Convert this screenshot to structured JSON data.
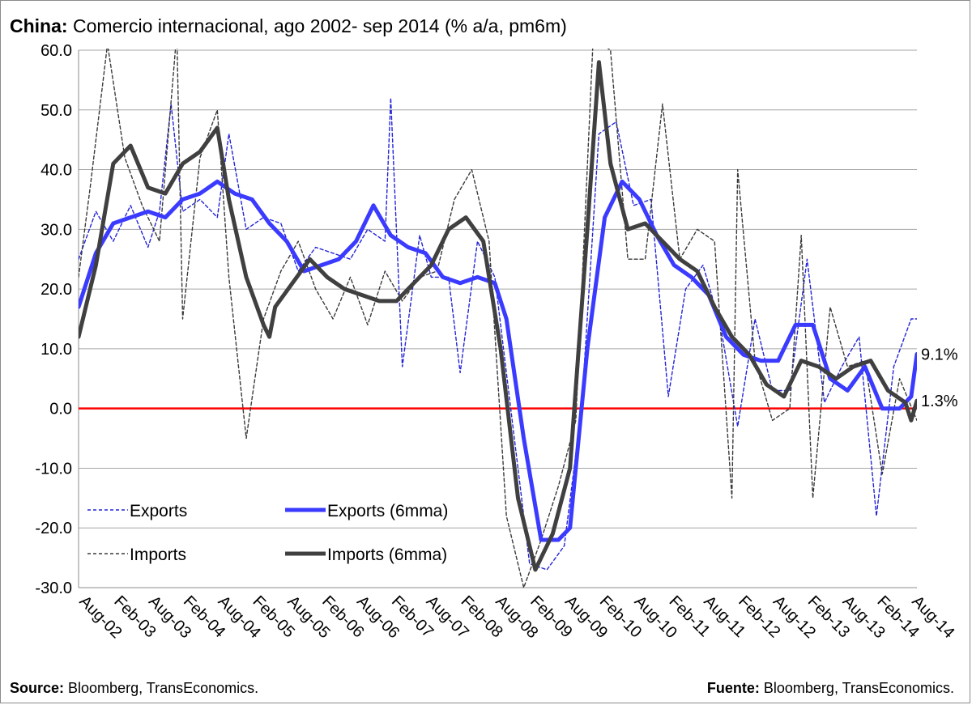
{
  "header": {
    "title_bold": "China:",
    "title_rest": " Comercio internacional, ago 2002- sep 2014 (% a/a, pm6m)"
  },
  "footer": {
    "source_bold": "Source:",
    "source_text": " Bloomberg, TransEconomics.",
    "fuente_bold": "Fuente:",
    "fuente_text": " Bloomberg, TransEconomics."
  },
  "chart_data": {
    "type": "line",
    "title": "China: Comercio internacional, ago 2002- sep 2014 (% a/a, pm6m)",
    "xlabel": "",
    "ylabel": "",
    "ylim": [
      -30,
      60
    ],
    "yticks": [
      "60.0",
      "50.0",
      "40.0",
      "30.0",
      "20.0",
      "10.0",
      "0.0",
      "-10.0",
      "-20.0",
      "-30.0"
    ],
    "x_tick_labels": [
      "Aug-02",
      "Feb-03",
      "Aug-03",
      "Feb-04",
      "Aug-04",
      "Feb-05",
      "Aug-05",
      "Feb-06",
      "Aug-06",
      "Feb-07",
      "Aug-07",
      "Feb-08",
      "Aug-08",
      "Feb-09",
      "Aug-09",
      "Feb-10",
      "Aug-10",
      "Feb-11",
      "Aug-11",
      "Feb-12",
      "Aug-12",
      "Feb-13",
      "Aug-13",
      "Feb-14",
      "Aug-14"
    ],
    "x_range": [
      "2002-08",
      "2014-09"
    ],
    "grid": "horizontal",
    "legend": "lower-left, two columns",
    "reference_line": {
      "y": 0,
      "color": "#ff0000"
    },
    "end_labels": [
      {
        "text": "9.1%",
        "value": 9.1
      },
      {
        "text": "1.3%",
        "value": 1.3
      }
    ],
    "series": [
      {
        "name": "Exports",
        "style": "dashed-thin",
        "color": "#2323d8",
        "points": [
          [
            "2002-08",
            25
          ],
          [
            "2002-11",
            33
          ],
          [
            "2003-02",
            28
          ],
          [
            "2003-05",
            34
          ],
          [
            "2003-08",
            27
          ],
          [
            "2003-10",
            33
          ],
          [
            "2003-12",
            51
          ],
          [
            "2004-02",
            33
          ],
          [
            "2004-05",
            35
          ],
          [
            "2004-08",
            32
          ],
          [
            "2004-10",
            46
          ],
          [
            "2005-01",
            30
          ],
          [
            "2005-04",
            32
          ],
          [
            "2005-07",
            31
          ],
          [
            "2005-10",
            23
          ],
          [
            "2006-01",
            27
          ],
          [
            "2006-04",
            26
          ],
          [
            "2006-07",
            25
          ],
          [
            "2006-10",
            30
          ],
          [
            "2007-01",
            28
          ],
          [
            "2007-02",
            52
          ],
          [
            "2007-04",
            7
          ],
          [
            "2007-07",
            29
          ],
          [
            "2007-09",
            22
          ],
          [
            "2007-12",
            22
          ],
          [
            "2008-02",
            6
          ],
          [
            "2008-05",
            28
          ],
          [
            "2008-08",
            22
          ],
          [
            "2008-11",
            -2
          ],
          [
            "2009-02",
            -26
          ],
          [
            "2009-05",
            -27
          ],
          [
            "2009-08",
            -23
          ],
          [
            "2009-11",
            0
          ],
          [
            "2010-02",
            46
          ],
          [
            "2010-05",
            48
          ],
          [
            "2010-08",
            34
          ],
          [
            "2010-11",
            35
          ],
          [
            "2011-02",
            2
          ],
          [
            "2011-05",
            20
          ],
          [
            "2011-08",
            24
          ],
          [
            "2011-11",
            14
          ],
          [
            "2012-02",
            -3
          ],
          [
            "2012-05",
            15
          ],
          [
            "2012-08",
            3
          ],
          [
            "2012-11",
            3
          ],
          [
            "2013-02",
            25
          ],
          [
            "2013-05",
            1
          ],
          [
            "2013-08",
            7
          ],
          [
            "2013-11",
            12
          ],
          [
            "2014-02",
            -18
          ],
          [
            "2014-05",
            7
          ],
          [
            "2014-08",
            15
          ],
          [
            "2014-09",
            15
          ]
        ]
      },
      {
        "name": "Exports (6mma)",
        "style": "solid-thick",
        "color": "#3b3bff",
        "points": [
          [
            "2002-08",
            17
          ],
          [
            "2002-11",
            26
          ],
          [
            "2003-02",
            31
          ],
          [
            "2003-05",
            32
          ],
          [
            "2003-08",
            33
          ],
          [
            "2003-11",
            32
          ],
          [
            "2004-02",
            35
          ],
          [
            "2004-05",
            36
          ],
          [
            "2004-08",
            38
          ],
          [
            "2004-11",
            36
          ],
          [
            "2005-02",
            35
          ],
          [
            "2005-05",
            31
          ],
          [
            "2005-08",
            28
          ],
          [
            "2005-11",
            23
          ],
          [
            "2006-02",
            24
          ],
          [
            "2006-05",
            25
          ],
          [
            "2006-08",
            28
          ],
          [
            "2006-11",
            34
          ],
          [
            "2007-02",
            29
          ],
          [
            "2007-05",
            27
          ],
          [
            "2007-08",
            26
          ],
          [
            "2007-11",
            22
          ],
          [
            "2008-02",
            21
          ],
          [
            "2008-05",
            22
          ],
          [
            "2008-08",
            21
          ],
          [
            "2008-10",
            15
          ],
          [
            "2009-01",
            -5
          ],
          [
            "2009-04",
            -22
          ],
          [
            "2009-07",
            -22
          ],
          [
            "2009-09",
            -20
          ],
          [
            "2009-12",
            10
          ],
          [
            "2010-03",
            32
          ],
          [
            "2010-06",
            38
          ],
          [
            "2010-09",
            35
          ],
          [
            "2010-12",
            29
          ],
          [
            "2011-03",
            24
          ],
          [
            "2011-06",
            22
          ],
          [
            "2011-09",
            19
          ],
          [
            "2011-12",
            12
          ],
          [
            "2012-03",
            9
          ],
          [
            "2012-06",
            8
          ],
          [
            "2012-09",
            8
          ],
          [
            "2012-12",
            14
          ],
          [
            "2013-03",
            14
          ],
          [
            "2013-06",
            5
          ],
          [
            "2013-09",
            3
          ],
          [
            "2013-12",
            7
          ],
          [
            "2014-03",
            0
          ],
          [
            "2014-06",
            0
          ],
          [
            "2014-08",
            2
          ],
          [
            "2014-09",
            9.1
          ]
        ]
      },
      {
        "name": "Imports",
        "style": "dashed-thin",
        "color": "#3a3a3a",
        "points": [
          [
            "2002-08",
            22
          ],
          [
            "2002-10",
            37
          ],
          [
            "2003-01",
            61
          ],
          [
            "2003-04",
            42
          ],
          [
            "2003-07",
            34
          ],
          [
            "2003-10",
            28
          ],
          [
            "2004-01",
            63
          ],
          [
            "2004-02",
            15
          ],
          [
            "2004-05",
            42
          ],
          [
            "2004-08",
            50
          ],
          [
            "2004-10",
            22
          ],
          [
            "2005-01",
            -5
          ],
          [
            "2005-04",
            15
          ],
          [
            "2005-07",
            23
          ],
          [
            "2005-10",
            28
          ],
          [
            "2006-01",
            20
          ],
          [
            "2006-04",
            15
          ],
          [
            "2006-07",
            22
          ],
          [
            "2006-10",
            14
          ],
          [
            "2007-01",
            23
          ],
          [
            "2007-04",
            18
          ],
          [
            "2007-07",
            22
          ],
          [
            "2007-10",
            23
          ],
          [
            "2008-01",
            35
          ],
          [
            "2008-04",
            40
          ],
          [
            "2008-07",
            28
          ],
          [
            "2008-10",
            -18
          ],
          [
            "2009-01",
            -30
          ],
          [
            "2009-04",
            -22
          ],
          [
            "2009-07",
            -13
          ],
          [
            "2009-10",
            -2
          ],
          [
            "2010-01",
            62
          ],
          [
            "2010-04",
            60
          ],
          [
            "2010-07",
            25
          ],
          [
            "2010-10",
            25
          ],
          [
            "2011-01",
            51
          ],
          [
            "2011-04",
            25
          ],
          [
            "2011-07",
            30
          ],
          [
            "2011-10",
            28
          ],
          [
            "2012-01",
            -15
          ],
          [
            "2012-02",
            40
          ],
          [
            "2012-05",
            8
          ],
          [
            "2012-08",
            -2
          ],
          [
            "2012-11",
            0
          ],
          [
            "2013-01",
            29
          ],
          [
            "2013-03",
            -15
          ],
          [
            "2013-06",
            17
          ],
          [
            "2013-09",
            7
          ],
          [
            "2013-12",
            8
          ],
          [
            "2014-03",
            -11
          ],
          [
            "2014-06",
            5
          ],
          [
            "2014-09",
            -2
          ]
        ]
      },
      {
        "name": "Imports (6mma)",
        "style": "solid-thick",
        "color": "#404040",
        "points": [
          [
            "2002-08",
            12
          ],
          [
            "2002-11",
            24
          ],
          [
            "2003-02",
            41
          ],
          [
            "2003-05",
            44
          ],
          [
            "2003-08",
            37
          ],
          [
            "2003-11",
            36
          ],
          [
            "2004-02",
            41
          ],
          [
            "2004-05",
            43
          ],
          [
            "2004-08",
            47
          ],
          [
            "2004-10",
            35
          ],
          [
            "2005-01",
            22
          ],
          [
            "2005-04",
            14
          ],
          [
            "2005-05",
            12
          ],
          [
            "2005-06",
            17
          ],
          [
            "2005-09",
            21
          ],
          [
            "2005-12",
            25
          ],
          [
            "2006-03",
            22
          ],
          [
            "2006-06",
            20
          ],
          [
            "2006-09",
            19
          ],
          [
            "2006-12",
            18
          ],
          [
            "2007-03",
            18
          ],
          [
            "2007-06",
            21
          ],
          [
            "2007-09",
            24
          ],
          [
            "2007-12",
            30
          ],
          [
            "2008-03",
            32
          ],
          [
            "2008-06",
            28
          ],
          [
            "2008-09",
            10
          ],
          [
            "2008-12",
            -15
          ],
          [
            "2009-03",
            -27
          ],
          [
            "2009-06",
            -21
          ],
          [
            "2009-09",
            -10
          ],
          [
            "2009-12",
            30
          ],
          [
            "2010-02",
            58
          ],
          [
            "2010-04",
            41
          ],
          [
            "2010-07",
            30
          ],
          [
            "2010-10",
            31
          ],
          [
            "2011-01",
            28
          ],
          [
            "2011-04",
            25
          ],
          [
            "2011-07",
            23
          ],
          [
            "2011-10",
            17
          ],
          [
            "2012-01",
            12
          ],
          [
            "2012-04",
            9
          ],
          [
            "2012-07",
            4
          ],
          [
            "2012-10",
            2
          ],
          [
            "2013-01",
            8
          ],
          [
            "2013-04",
            7
          ],
          [
            "2013-07",
            5
          ],
          [
            "2013-10",
            7
          ],
          [
            "2014-01",
            8
          ],
          [
            "2014-04",
            3
          ],
          [
            "2014-07",
            1
          ],
          [
            "2014-08",
            -2
          ],
          [
            "2014-09",
            1.3
          ]
        ]
      }
    ]
  }
}
